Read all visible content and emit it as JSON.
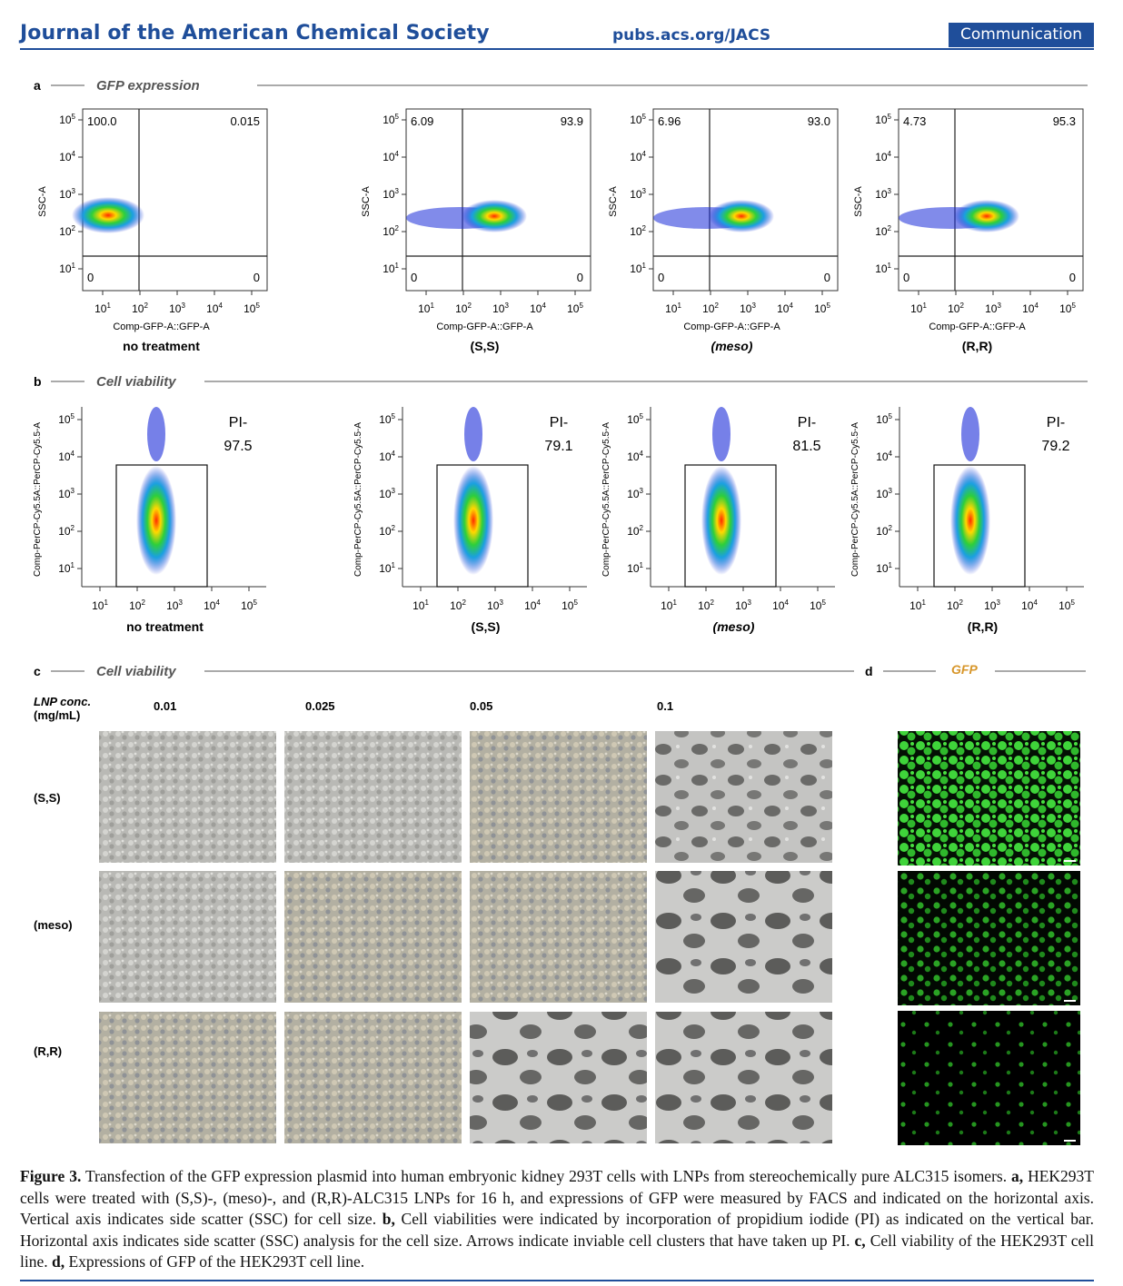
{
  "header": {
    "journal": "Journal of the American Chemical Society",
    "url": "pubs.acs.org/JACS",
    "badge": "Communication"
  },
  "panel_a": {
    "letter": "a",
    "title": "GFP expression",
    "ylabel": "SSC-A",
    "xlabel": "Comp-GFP-A::GFP-A",
    "plots": [
      {
        "condition": "no treatment",
        "ul": "100.0",
        "ur": "0.015",
        "ll": "0",
        "lr": "0"
      },
      {
        "condition": "(S,S)",
        "ul": "6.09",
        "ur": "93.9",
        "ll": "0",
        "lr": "0"
      },
      {
        "condition": "(meso)",
        "ul": "6.96",
        "ur": "93.0",
        "ll": "0",
        "lr": "0"
      },
      {
        "condition": "(R,R)",
        "ul": "4.73",
        "ur": "95.3",
        "ll": "0",
        "lr": "0"
      }
    ]
  },
  "panel_b": {
    "letter": "b",
    "title": "Cell viability",
    "ylabel": "Comp-PerCP-Cy5.5A::PerCP-Cy5.5-A",
    "plots": [
      {
        "condition": "no treatment",
        "gate": "PI-",
        "value": "97.5"
      },
      {
        "condition": "(S,S)",
        "gate": "PI-",
        "value": "79.1"
      },
      {
        "condition": "(meso)",
        "gate": "PI-",
        "value": "81.5"
      },
      {
        "condition": "(R,R)",
        "gate": "PI-",
        "value": "79.2"
      }
    ]
  },
  "panel_c": {
    "letter": "c",
    "title": "Cell viability",
    "conc_label_1": "LNP conc.",
    "conc_label_2": "(mg/mL)",
    "concentrations": [
      "0.01",
      "0.025",
      "0.05",
      "0.1"
    ],
    "rows": [
      "(S,S)",
      "(meso)",
      "(R,R)"
    ]
  },
  "panel_d": {
    "letter": "d",
    "title": "GFP"
  },
  "caption": {
    "label": "Figure 3.",
    "intro": " Transfection of the GFP expression plasmid into human embryonic kidney 293T cells with LNPs from stereochemically pure ALC315 isomers. ",
    "a_label": "a,",
    "a_text": " HEK293T cells were treated with (S,S)-, (meso)-, and (R,R)-ALC315 LNPs for 16 h, and expressions of GFP were measured by FACS and indicated on the horizontal axis. Vertical axis indicates side scatter (SSC) for cell size. ",
    "b_label": "b,",
    "b_text": " Cell viabilities were indicated by incorporation of propidium iodide (PI) as indicated on the vertical bar. Horizontal axis indicates side scatter (SSC) analysis for the cell size. Arrows indicate inviable cell clusters that have taken up PI. ",
    "c_label": "c,",
    "c_text": " Cell viability of the HEK293T cell line. ",
    "d_label": "d,",
    "d_text": " Expressions of GFP of the HEK293T cell line."
  }
}
